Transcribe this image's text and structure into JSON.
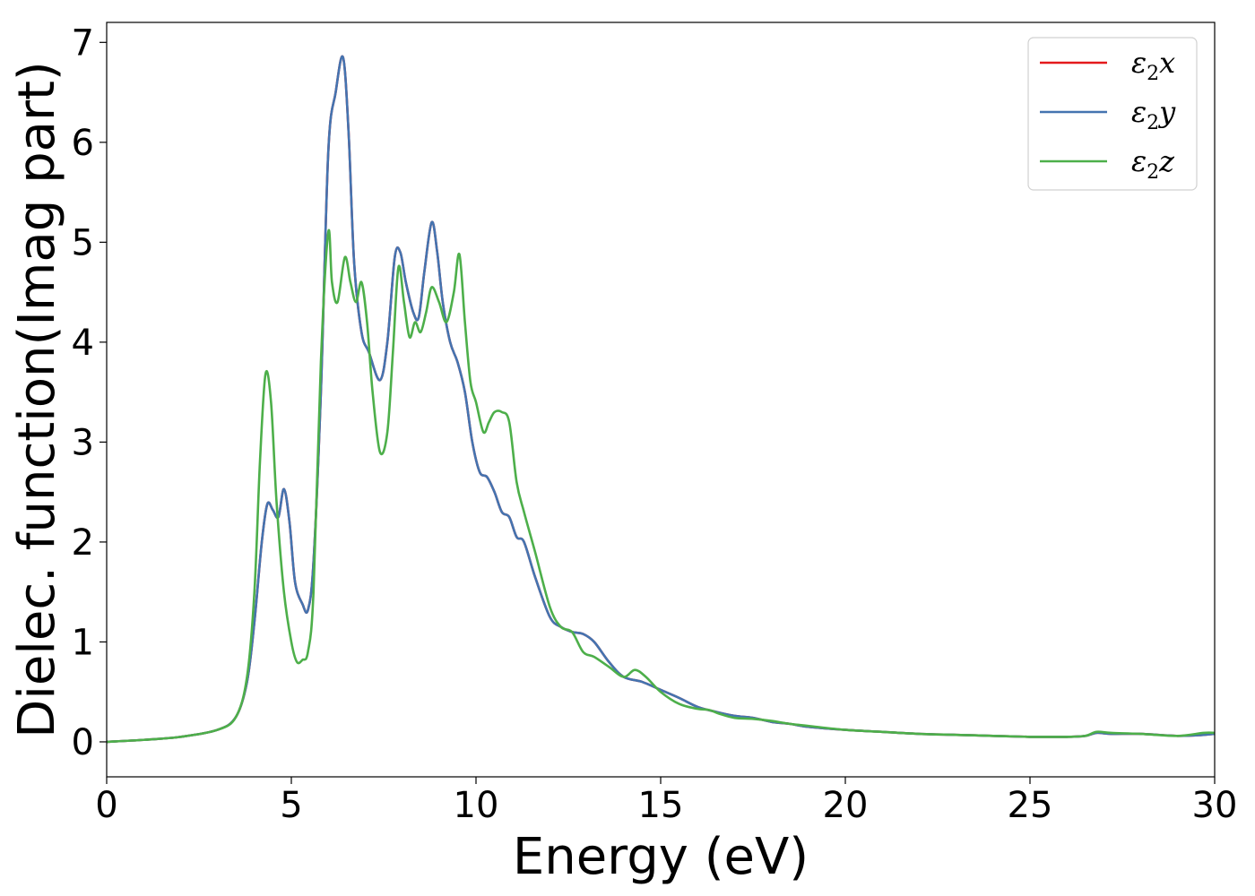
{
  "chart_data": {
    "type": "line",
    "xlabel": "Energy (eV)",
    "ylabel": "Dielec. function(Imag part)",
    "xlim": [
      0,
      30
    ],
    "ylim": [
      -0.35,
      7.2
    ],
    "xticks": [
      0,
      5,
      10,
      15,
      20,
      25,
      30
    ],
    "yticks": [
      0,
      1,
      2,
      3,
      4,
      5,
      6,
      7
    ],
    "grid": false,
    "legend_position": "top-right",
    "series": [
      {
        "name": "ε2x",
        "legend_base": "ε",
        "legend_sub": "2",
        "legend_var": "x",
        "color": "#e41a1c",
        "x": [
          0,
          1,
          2,
          3,
          3.5,
          3.8,
          4.0,
          4.2,
          4.35,
          4.5,
          4.65,
          4.8,
          4.95,
          5.1,
          5.3,
          5.45,
          5.6,
          5.8,
          6.0,
          6.2,
          6.4,
          6.55,
          6.7,
          6.9,
          7.1,
          7.4,
          7.6,
          7.8,
          7.95,
          8.1,
          8.3,
          8.45,
          8.6,
          8.8,
          8.95,
          9.1,
          9.3,
          9.5,
          9.7,
          9.9,
          10.1,
          10.3,
          10.5,
          10.7,
          10.9,
          11.1,
          11.3,
          11.6,
          12.0,
          12.3,
          12.6,
          12.9,
          13.2,
          13.6,
          14.0,
          14.5,
          15.0,
          15.5,
          16.0,
          16.5,
          17.0,
          17.5,
          18.0,
          18.5,
          19.0,
          20.0,
          21.0,
          22.0,
          23.0,
          24.0,
          25.0,
          25.5,
          26.0,
          26.5,
          26.8,
          27.2,
          28.0,
          29.0,
          29.7,
          30.0
        ],
        "y": [
          0.0,
          0.02,
          0.05,
          0.12,
          0.25,
          0.6,
          1.2,
          2.0,
          2.38,
          2.32,
          2.25,
          2.53,
          2.2,
          1.6,
          1.38,
          1.32,
          1.8,
          3.5,
          5.9,
          6.5,
          6.85,
          6.1,
          4.8,
          4.1,
          3.9,
          3.62,
          4.0,
          4.85,
          4.9,
          4.6,
          4.3,
          4.25,
          4.7,
          5.2,
          4.9,
          4.4,
          4.0,
          3.8,
          3.5,
          3.0,
          2.7,
          2.65,
          2.5,
          2.3,
          2.25,
          2.05,
          2.0,
          1.65,
          1.25,
          1.15,
          1.1,
          1.08,
          1.0,
          0.8,
          0.65,
          0.6,
          0.52,
          0.44,
          0.35,
          0.3,
          0.26,
          0.24,
          0.2,
          0.18,
          0.15,
          0.12,
          0.1,
          0.08,
          0.07,
          0.06,
          0.05,
          0.05,
          0.05,
          0.06,
          0.09,
          0.08,
          0.08,
          0.06,
          0.07,
          0.08
        ]
      },
      {
        "name": "ε2y",
        "legend_base": "ε",
        "legend_sub": "2",
        "legend_var": "y",
        "color": "#4474b0",
        "x": [
          0,
          1,
          2,
          3,
          3.5,
          3.8,
          4.0,
          4.2,
          4.35,
          4.5,
          4.65,
          4.8,
          4.95,
          5.1,
          5.3,
          5.45,
          5.6,
          5.8,
          6.0,
          6.2,
          6.4,
          6.55,
          6.7,
          6.9,
          7.1,
          7.4,
          7.6,
          7.8,
          7.95,
          8.1,
          8.3,
          8.45,
          8.6,
          8.8,
          8.95,
          9.1,
          9.3,
          9.5,
          9.7,
          9.9,
          10.1,
          10.3,
          10.5,
          10.7,
          10.9,
          11.1,
          11.3,
          11.6,
          12.0,
          12.3,
          12.6,
          12.9,
          13.2,
          13.6,
          14.0,
          14.5,
          15.0,
          15.5,
          16.0,
          16.5,
          17.0,
          17.5,
          18.0,
          18.5,
          19.0,
          20.0,
          21.0,
          22.0,
          23.0,
          24.0,
          25.0,
          25.5,
          26.0,
          26.5,
          26.8,
          27.2,
          28.0,
          29.0,
          29.7,
          30.0
        ],
        "y": [
          0.0,
          0.02,
          0.05,
          0.12,
          0.25,
          0.6,
          1.2,
          2.0,
          2.38,
          2.32,
          2.25,
          2.53,
          2.2,
          1.6,
          1.38,
          1.32,
          1.8,
          3.5,
          5.9,
          6.5,
          6.85,
          6.1,
          4.8,
          4.1,
          3.9,
          3.62,
          4.0,
          4.85,
          4.9,
          4.6,
          4.3,
          4.25,
          4.7,
          5.2,
          4.9,
          4.4,
          4.0,
          3.8,
          3.5,
          3.0,
          2.7,
          2.65,
          2.5,
          2.3,
          2.25,
          2.05,
          2.0,
          1.65,
          1.25,
          1.15,
          1.1,
          1.08,
          1.0,
          0.8,
          0.65,
          0.6,
          0.52,
          0.44,
          0.35,
          0.3,
          0.26,
          0.24,
          0.2,
          0.18,
          0.15,
          0.12,
          0.1,
          0.08,
          0.07,
          0.06,
          0.05,
          0.05,
          0.05,
          0.06,
          0.09,
          0.08,
          0.08,
          0.06,
          0.07,
          0.08
        ]
      },
      {
        "name": "ε2z",
        "legend_base": "ε",
        "legend_sub": "2",
        "legend_var": "z",
        "color": "#4daf4a",
        "x": [
          0,
          1,
          2,
          3,
          3.5,
          3.8,
          4.0,
          4.15,
          4.3,
          4.45,
          4.6,
          4.8,
          5.0,
          5.15,
          5.3,
          5.45,
          5.6,
          5.8,
          6.0,
          6.1,
          6.25,
          6.45,
          6.6,
          6.75,
          6.9,
          7.05,
          7.2,
          7.4,
          7.6,
          7.75,
          7.9,
          8.05,
          8.2,
          8.35,
          8.5,
          8.65,
          8.8,
          9.0,
          9.2,
          9.4,
          9.55,
          9.7,
          9.85,
          10.0,
          10.2,
          10.35,
          10.5,
          10.7,
          10.9,
          11.1,
          11.3,
          11.6,
          12.0,
          12.3,
          12.6,
          12.9,
          13.2,
          13.6,
          14.0,
          14.3,
          14.6,
          15.0,
          15.5,
          16.0,
          16.3,
          16.6,
          17.0,
          17.5,
          18.0,
          18.5,
          19.0,
          20.0,
          21.0,
          22.0,
          23.0,
          24.0,
          25.0,
          25.5,
          26.0,
          26.5,
          26.8,
          27.2,
          28.0,
          29.0,
          29.7,
          30.0
        ],
        "y": [
          0.0,
          0.02,
          0.05,
          0.12,
          0.25,
          0.65,
          1.5,
          2.8,
          3.68,
          3.4,
          2.4,
          1.5,
          1.0,
          0.8,
          0.82,
          0.9,
          1.5,
          3.8,
          5.1,
          4.6,
          4.4,
          4.85,
          4.6,
          4.4,
          4.6,
          4.2,
          3.5,
          2.9,
          3.1,
          3.9,
          4.75,
          4.4,
          4.05,
          4.2,
          4.1,
          4.3,
          4.55,
          4.4,
          4.2,
          4.5,
          4.88,
          4.2,
          3.6,
          3.4,
          3.1,
          3.2,
          3.3,
          3.3,
          3.2,
          2.6,
          2.3,
          1.9,
          1.35,
          1.15,
          1.1,
          0.9,
          0.85,
          0.75,
          0.65,
          0.72,
          0.65,
          0.5,
          0.38,
          0.33,
          0.32,
          0.28,
          0.24,
          0.23,
          0.21,
          0.18,
          0.16,
          0.12,
          0.1,
          0.08,
          0.07,
          0.06,
          0.05,
          0.05,
          0.05,
          0.06,
          0.1,
          0.09,
          0.08,
          0.06,
          0.09,
          0.09
        ]
      }
    ]
  }
}
